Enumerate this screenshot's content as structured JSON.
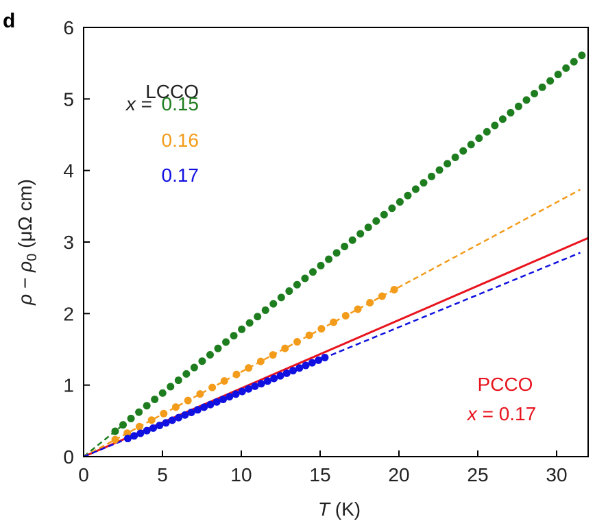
{
  "panel_label": "d",
  "chart_data": {
    "type": "scatter",
    "xlabel_sym": "T",
    "xlabel_unit": " (K)",
    "ylabel_sym1": "ρ",
    "ylabel_minus": " − ",
    "ylabel_sym2": "ρ",
    "ylabel_sub": "0",
    "ylabel_unit": " (μΩ cm)",
    "xlim": [
      0,
      32
    ],
    "ylim": [
      0,
      6
    ],
    "xticks": [
      0,
      5,
      10,
      15,
      20,
      25,
      30
    ],
    "yticks": [
      0,
      1,
      2,
      3,
      4,
      5,
      6
    ],
    "legend_title": "LCCO",
    "legend_prefix_var": "x",
    "legend_prefix_eq": " = ",
    "annotation_line1": "PCCO",
    "annotation_var": "x",
    "annotation_rest": " = 0.17",
    "series": [
      {
        "name": "0.15",
        "color": "#1e7d1e",
        "slope": 0.1775,
        "x_start": 2.0,
        "x_end": 31.6,
        "n_points": 60,
        "fit_x_end": 2.5
      },
      {
        "name": "0.16",
        "color": "#f39c1b",
        "slope": 0.1185,
        "x_start": 2.0,
        "x_end": 19.7,
        "n_points": 24,
        "fit_x_end": 31.5
      },
      {
        "name": "0.17",
        "color": "#1010e0",
        "slope": 0.0905,
        "x_start": 2.8,
        "x_end": 15.3,
        "n_points": 32,
        "fit_x_end": 31.5
      }
    ],
    "pcco_line": {
      "color": "#e8141e",
      "slope": 0.0955,
      "x_end": 32
    }
  }
}
